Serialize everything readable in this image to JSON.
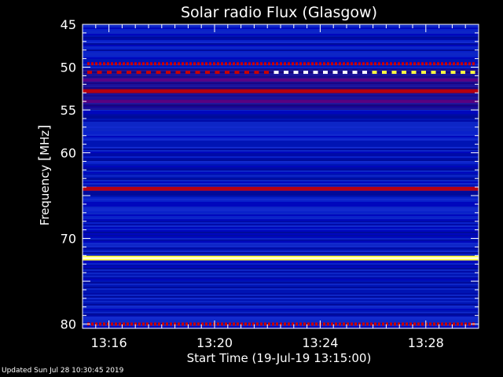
{
  "chart_data": {
    "type": "heatmap",
    "title": "Solar radio Flux (Glasgow)",
    "ylabel_prefix": "Frequency ",
    "ylabel_unit": "MHz",
    "xlabel": "Start Time (19-Jul-19 13:15:00)",
    "yticks": [
      45,
      50,
      55,
      60,
      65,
      70,
      75,
      80
    ],
    "ytick_labels": [
      "45",
      "50",
      "55",
      "60",
      "",
      "70",
      "",
      "80"
    ],
    "xtick_labels": [
      "13:16",
      "13:20",
      "13:24",
      "13:28"
    ],
    "xtick_minutes": [
      16,
      20,
      24,
      28
    ],
    "x_range_minutes": [
      15.0,
      30.0
    ],
    "y_range_mhz": [
      45.0,
      80.5
    ],
    "y_axis_reversed": true,
    "bands": [
      {
        "mhz": 49.6,
        "level": "red-dotted"
      },
      {
        "mhz": 50.6,
        "level": "white-yellow-dotted"
      },
      {
        "mhz": 51.5,
        "level": "dark-red"
      },
      {
        "mhz": 52.8,
        "level": "red"
      },
      {
        "mhz": 54.0,
        "level": "dark-red"
      },
      {
        "mhz": 64.2,
        "level": "red"
      },
      {
        "mhz": 72.3,
        "level": "yellow-white"
      },
      {
        "mhz": 80.0,
        "level": "red-dotted"
      }
    ],
    "colors": {
      "background": "#0010b0",
      "low": "#0000a0",
      "mid": "#6a0080",
      "high": "#c80000",
      "peak": "#ffff40",
      "max": "#ffffff"
    }
  },
  "footer": {
    "updated": "Updated Sun Jul 28 10:30:45 2019"
  }
}
